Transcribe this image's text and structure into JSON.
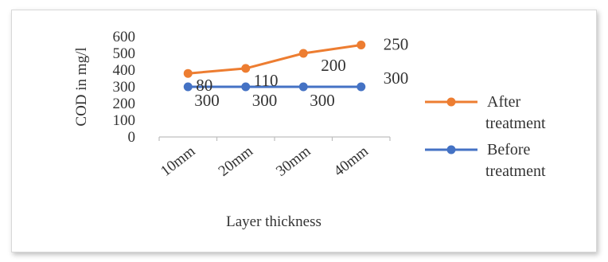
{
  "chart_data": {
    "type": "line",
    "categories": [
      "10mm",
      "20mm",
      "30mm",
      "40mm"
    ],
    "series": [
      {
        "name": "After treatment",
        "legend_lines": [
          "After",
          "treatment"
        ],
        "values": [
          380,
          410,
          500,
          550
        ],
        "data_labels": [
          "80",
          "110",
          "200",
          "250"
        ],
        "color": "#ED7D31"
      },
      {
        "name": "Before treatment",
        "legend_lines": [
          "Before",
          "treatment"
        ],
        "values": [
          300,
          300,
          300,
          300
        ],
        "data_labels": [
          "300",
          "300",
          "300",
          "300"
        ],
        "color": "#4472C4"
      }
    ],
    "title": "",
    "xlabel": "Layer thickness",
    "ylabel": "COD in mg/l",
    "ylim": [
      0,
      600
    ],
    "yticks": [
      "0",
      "100",
      "200",
      "300",
      "400",
      "500",
      "600"
    ],
    "grid": false,
    "legend_position": "right"
  }
}
